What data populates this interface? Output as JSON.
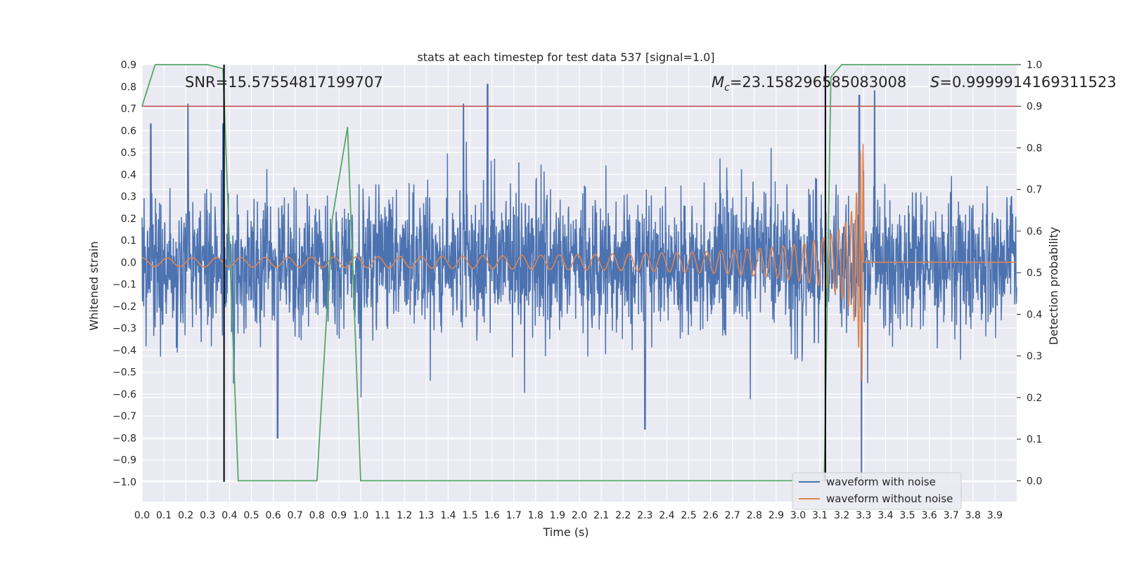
{
  "chart_data": {
    "type": "line",
    "title": "stats at each timestep for test data 537 [signal=1.0]",
    "xlabel": "Time (s)",
    "ylabel": "Whitened strain",
    "y2label": "Detection probability",
    "xlim": [
      0.0,
      4.0
    ],
    "ylim": [
      -1.09,
      0.9
    ],
    "y2lim": [
      -0.05,
      1.0
    ],
    "x_ticks": [
      "0.0",
      "0.1",
      "0.2",
      "0.3",
      "0.4",
      "0.5",
      "0.6",
      "0.7",
      "0.8",
      "0.9",
      "1.0",
      "1.1",
      "1.2",
      "1.3",
      "1.4",
      "1.5",
      "1.6",
      "1.7",
      "1.8",
      "1.9",
      "2.0",
      "2.1",
      "2.2",
      "2.3",
      "2.4",
      "2.5",
      "2.6",
      "2.7",
      "2.8",
      "2.9",
      "3.0",
      "3.1",
      "3.2",
      "3.3",
      "3.4",
      "3.5",
      "3.6",
      "3.7",
      "3.8",
      "3.9"
    ],
    "y_ticks": [
      "0.9",
      "0.8",
      "0.7",
      "0.6",
      "0.5",
      "0.4",
      "0.3",
      "0.2",
      "0.1",
      "0.0",
      "−0.1",
      "−0.2",
      "−0.3",
      "−0.4",
      "−0.5",
      "−0.6",
      "−0.7",
      "−0.8",
      "−0.9",
      "−1.0"
    ],
    "y2_ticks": [
      "1.0",
      "0.9",
      "0.8",
      "0.7",
      "0.6",
      "0.5",
      "0.4",
      "0.3",
      "0.2",
      "0.1",
      "0.0"
    ],
    "annotations": {
      "snr": "SNR=15.57554817199707",
      "mc_symbol": "M",
      "mc_sub": "c",
      "mc_value": "=23.158296585083008",
      "s_symbol": "S",
      "s_value": "=0.9999914169311523"
    },
    "vertical_markers_x": [
      0.375,
      3.125
    ],
    "threshold_y2": 0.9,
    "series": [
      {
        "name": "waveform with noise",
        "color": "#4c72b0",
        "description": "whitened noisy strain, approx. amplitude ±0.3, extremes from −1.0 to 0.81",
        "sample_peaks": [
          [
            0.04,
            0.63
          ],
          [
            0.21,
            0.72
          ],
          [
            0.37,
            0.63
          ],
          [
            0.42,
            -0.55
          ],
          [
            0.62,
            -0.8
          ],
          [
            1.47,
            0.72
          ],
          [
            1.58,
            0.81
          ],
          [
            2.3,
            -0.76
          ],
          [
            3.28,
            0.76
          ],
          [
            3.29,
            -1.0
          ],
          [
            3.35,
            0.78
          ]
        ]
      },
      {
        "name": "waveform without noise",
        "color": "#dd8452",
        "description": "chirp signal growing in amplitude and frequency until merger near t=3.3 s",
        "amplitude_start": 0.02,
        "amplitude_peak": 0.56,
        "merger_time": 3.3
      },
      {
        "name": "detection probability",
        "color": "#55a868",
        "axis": "y2",
        "x": [
          0.0,
          0.06,
          0.12,
          0.3,
          0.37,
          0.44,
          0.5,
          0.8,
          0.87,
          0.94,
          1.0,
          3.12,
          3.15,
          3.2,
          3.25,
          4.0
        ],
        "y": [
          0.9,
          1.0,
          1.0,
          1.0,
          0.99,
          0.0,
          0.0,
          0.0,
          0.63,
          0.85,
          0.0,
          0.0,
          0.97,
          1.0,
          1.0,
          1.0
        ]
      }
    ],
    "legend": [
      "waveform with noise",
      "waveform without noise"
    ],
    "legend_position": "lower-right"
  }
}
